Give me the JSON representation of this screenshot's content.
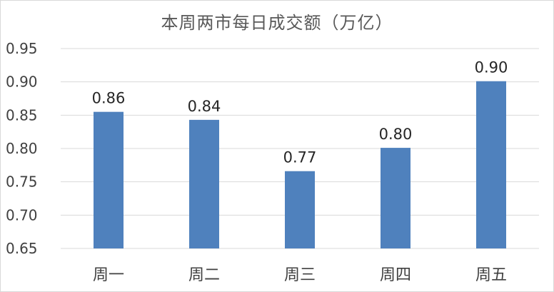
{
  "chart_data": {
    "type": "bar",
    "title": "本周两市每日成交额（万亿）",
    "categories": [
      "周一",
      "周二",
      "周三",
      "周四",
      "周五"
    ],
    "values": [
      0.855,
      0.843,
      0.766,
      0.801,
      0.901
    ],
    "data_labels": [
      "0.86",
      "0.84",
      "0.77",
      "0.80",
      "0.90"
    ],
    "yticks": [
      "0.65",
      "0.70",
      "0.75",
      "0.80",
      "0.85",
      "0.90",
      "0.95"
    ],
    "ylim": [
      0.65,
      0.95
    ],
    "xlabel": "",
    "ylabel": "",
    "grid": true,
    "legend": "none",
    "colors": {
      "bar": "#4f81bd",
      "grid": "#d9d9d9"
    }
  }
}
